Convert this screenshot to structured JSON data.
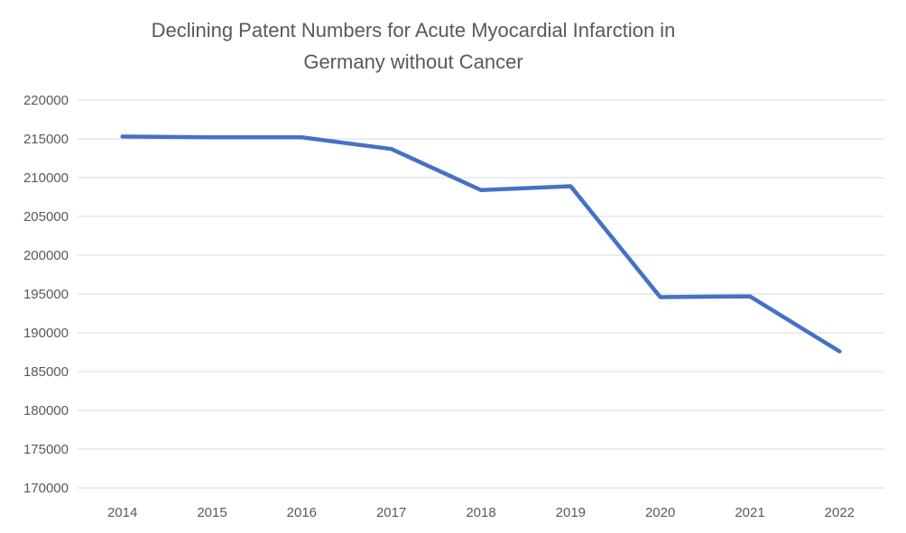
{
  "chart_data": {
    "type": "line",
    "title": "Declining Patent Numbers for Acute Myocardial Infarction in Germany without Cancer",
    "title_lines": [
      "Declining Patent Numbers for Acute Myocardial Infarction in",
      "Germany without Cancer"
    ],
    "categories": [
      "2014",
      "2015",
      "2016",
      "2017",
      "2018",
      "2019",
      "2020",
      "2021",
      "2022"
    ],
    "values": [
      215300,
      215200,
      215200,
      213700,
      208400,
      208900,
      194600,
      194700,
      187600
    ],
    "xlabel": "",
    "ylabel": "",
    "ylim": [
      170000,
      220000
    ],
    "ytick_step": 5000,
    "ytick_labels": [
      "220000",
      "215000",
      "210000",
      "205000",
      "200000",
      "195000",
      "190000",
      "185000",
      "180000",
      "175000",
      "170000"
    ],
    "grid": true,
    "legend": false,
    "colors": {
      "line": "#4472C4",
      "gridline": "#D9D9D9",
      "text": "#595959",
      "background": "#FFFFFF"
    }
  }
}
